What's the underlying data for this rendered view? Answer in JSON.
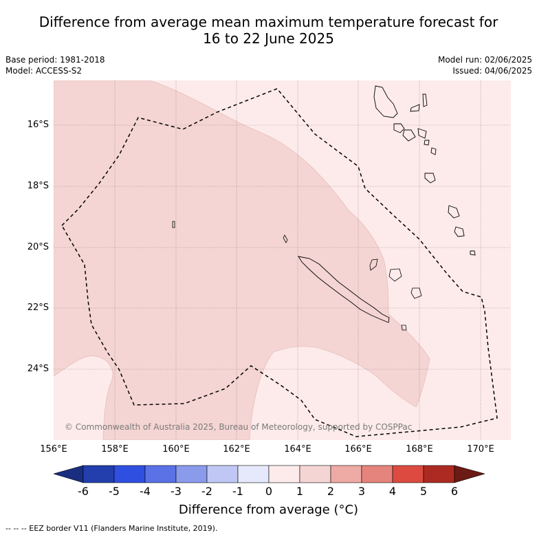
{
  "title": {
    "line1": "Difference from average mean maximum temperature forecast for",
    "line2": "16 to 22 June 2025"
  },
  "meta_left": {
    "base_period": "Base period: 1981-2018",
    "model": "Model: ACCESS-S2"
  },
  "meta_right": {
    "model_run": "Model run: 02/06/2025",
    "issued": "Issued: 04/06/2025"
  },
  "map": {
    "lat_labels": [
      "16°S",
      "18°S",
      "20°S",
      "22°S",
      "24°S"
    ],
    "lon_labels": [
      "156°E",
      "158°E",
      "160°E",
      "162°E",
      "164°E",
      "166°E",
      "168°E",
      "170°E"
    ],
    "copyright": "© Commonwealth of Australia 2025, Bureau of Meteorology, supported by COSPPac",
    "anomaly_colors": {
      "0_to_1": "#fcebea",
      "1_to_2": "#f4d5d3"
    }
  },
  "colorbar": {
    "ticks": [
      "-6",
      "-5",
      "-4",
      "-3",
      "-2",
      "-1",
      "0",
      "1",
      "2",
      "3",
      "4",
      "5",
      "6"
    ],
    "colors": [
      "#1a2e80",
      "#233fae",
      "#2f4fe0",
      "#5a72e6",
      "#8a9bec",
      "#c0c7f4",
      "#e6e9fb",
      "#fcebea",
      "#f4d5d3",
      "#eeaaa4",
      "#e5847c",
      "#dc4a40",
      "#ad2a22",
      "#6b1a14"
    ],
    "title": "Difference from average (°C)"
  },
  "footnote": "--  --  -- EEZ border V11 (Flanders Marine Institute, 2019)."
}
